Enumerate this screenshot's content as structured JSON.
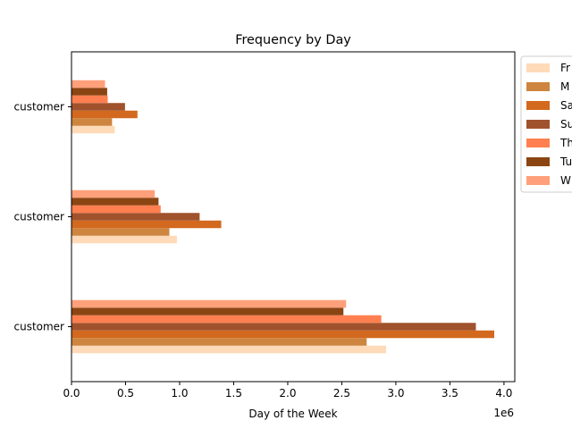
{
  "chart_data": {
    "type": "bar",
    "orientation": "horizontal",
    "title": "Frequency by Day",
    "xlabel": "Day of the Week",
    "ylabel": "",
    "x_offset_label": "1e6",
    "xlim": [
      0,
      4100000
    ],
    "x_ticks": [
      0,
      500000,
      1000000,
      1500000,
      2000000,
      2500000,
      3000000,
      3500000,
      4000000
    ],
    "x_tick_labels": [
      "0.0",
      "0.5",
      "1.0",
      "1.5",
      "2.0",
      "2.5",
      "3.0",
      "3.5",
      "4.0"
    ],
    "categories": [
      "customer",
      "customer",
      "customer"
    ],
    "category_tick_labels": [
      "customer",
      "customer",
      "customer"
    ],
    "legend_position": "outside-right",
    "grid": false,
    "series": [
      {
        "name": "Fr",
        "color": "#FFDAB9",
        "values": [
          2910000,
          975000,
          400000
        ]
      },
      {
        "name": "M",
        "color": "#CD853F",
        "values": [
          2730000,
          905000,
          375000
        ]
      },
      {
        "name": "Sa",
        "color": "#D2691E",
        "values": [
          3910000,
          1385000,
          610000
        ]
      },
      {
        "name": "Su",
        "color": "#A0522D",
        "values": [
          3740000,
          1185000,
          495000
        ]
      },
      {
        "name": "Th",
        "color": "#FF7F50",
        "values": [
          2865000,
          825000,
          335000
        ]
      },
      {
        "name": "Tu",
        "color": "#8B4513",
        "values": [
          2515000,
          805000,
          330000
        ]
      },
      {
        "name": "W",
        "color": "#FFA07A",
        "values": [
          2540000,
          770000,
          310000
        ]
      }
    ]
  }
}
